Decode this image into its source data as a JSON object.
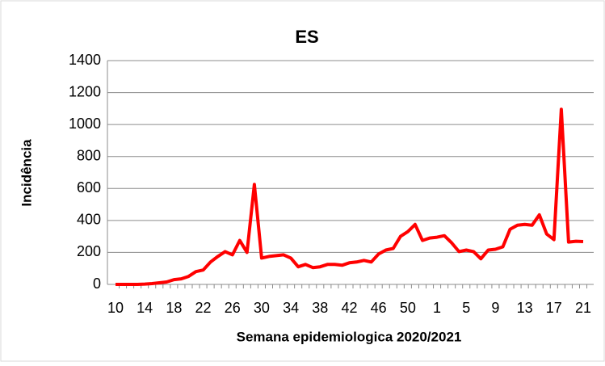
{
  "chart_data": {
    "type": "line",
    "title": "ES",
    "x_label": "Semana epidemiologica 2020/2021",
    "y_label": "Incidência",
    "categories": [
      "10",
      null,
      null,
      null,
      "14",
      null,
      null,
      null,
      "18",
      null,
      null,
      null,
      "22",
      null,
      null,
      null,
      "26",
      null,
      null,
      null,
      "30",
      null,
      null,
      null,
      "34",
      null,
      null,
      null,
      "38",
      null,
      null,
      null,
      "42",
      null,
      null,
      null,
      "46",
      null,
      null,
      null,
      "50",
      null,
      null,
      null,
      "1",
      null,
      null,
      null,
      "5",
      null,
      null,
      null,
      "9",
      null,
      null,
      null,
      "13",
      null,
      null,
      null,
      "17",
      null,
      null,
      null,
      "21"
    ],
    "series": [
      {
        "name": "ES",
        "color": "#ff0000",
        "values": [
          0,
          0,
          0,
          0,
          2,
          5,
          10,
          15,
          30,
          35,
          50,
          80,
          90,
          140,
          175,
          205,
          185,
          275,
          200,
          625,
          165,
          175,
          180,
          185,
          165,
          110,
          125,
          105,
          110,
          125,
          125,
          120,
          135,
          140,
          150,
          140,
          190,
          215,
          225,
          300,
          330,
          375,
          275,
          290,
          295,
          305,
          260,
          205,
          215,
          205,
          160,
          215,
          220,
          235,
          345,
          370,
          375,
          370,
          435,
          315,
          280,
          1095,
          265,
          270,
          268
        ]
      }
    ],
    "ylim": [
      0,
      1400
    ],
    "yticks": [
      0,
      200,
      400,
      600,
      800,
      1000,
      1200,
      1400
    ],
    "grid": true
  }
}
